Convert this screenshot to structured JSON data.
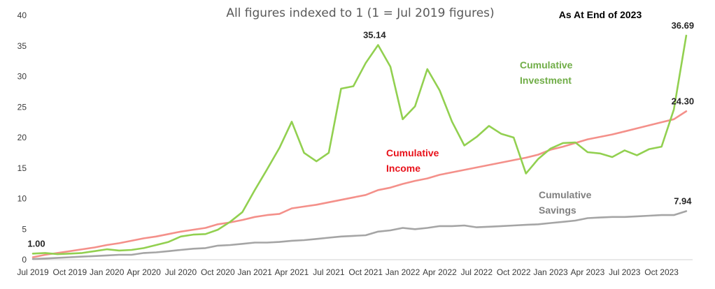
{
  "chart_data": {
    "type": "line",
    "title": "All figures indexed to 1 (1 = Jul 2019 figures)",
    "note": "As At End of 2023",
    "ylim": [
      0,
      40
    ],
    "yticks": [
      "0",
      "5",
      "10",
      "15",
      "20",
      "25",
      "30",
      "35",
      "40"
    ],
    "xticks": [
      "Jul 2019",
      "Oct 2019",
      "Jan 2020",
      "Apr 2020",
      "Jul 2020",
      "Oct 2020",
      "Jan 2021",
      "Apr 2021",
      "Jul 2021",
      "Oct 2021",
      "Jan 2022",
      "Apr 2022",
      "Jul 2022",
      "Oct 2022",
      "Jan 2023",
      "Apr 2023",
      "Jul 2023",
      "Oct 2023"
    ],
    "x": [
      "Jul 2019",
      "Aug 2019",
      "Sep 2019",
      "Oct 2019",
      "Nov 2019",
      "Dec 2019",
      "Jan 2020",
      "Feb 2020",
      "Mar 2020",
      "Apr 2020",
      "May 2020",
      "Jun 2020",
      "Jul 2020",
      "Aug 2020",
      "Sep 2020",
      "Oct 2020",
      "Nov 2020",
      "Dec 2020",
      "Jan 2021",
      "Feb 2021",
      "Mar 2021",
      "Apr 2021",
      "May 2021",
      "Jun 2021",
      "Jul 2021",
      "Aug 2021",
      "Sep 2021",
      "Oct 2021",
      "Nov 2021",
      "Dec 2021",
      "Jan 2022",
      "Feb 2022",
      "Mar 2022",
      "Apr 2022",
      "May 2022",
      "Jun 2022",
      "Jul 2022",
      "Aug 2022",
      "Sep 2022",
      "Oct 2022",
      "Nov 2022",
      "Dec 2022",
      "Jan 2023",
      "Feb 2023",
      "Mar 2023",
      "Apr 2023",
      "May 2023",
      "Jun 2023",
      "Jul 2023",
      "Aug 2023",
      "Sep 2023",
      "Oct 2023",
      "Nov 2023",
      "Dec 2023"
    ],
    "series": [
      {
        "name": "Cumulative Investment",
        "label_lines": [
          "Cumulative",
          "Investment"
        ],
        "color": "#92d050",
        "values": [
          1.0,
          1.1,
          0.9,
          1.0,
          1.1,
          1.4,
          1.7,
          1.5,
          1.6,
          1.9,
          2.4,
          2.9,
          3.8,
          4.1,
          4.2,
          4.9,
          6.2,
          7.8,
          11.4,
          14.8,
          18.3,
          22.6,
          17.5,
          16.1,
          17.5,
          28.0,
          28.4,
          32.2,
          35.14,
          31.6,
          23.0,
          25.1,
          31.2,
          27.7,
          22.6,
          18.7,
          20.1,
          21.9,
          20.6,
          20.0,
          14.1,
          16.5,
          18.2,
          19.1,
          19.2,
          17.6,
          17.4,
          16.8,
          17.9,
          17.1,
          18.1,
          18.5,
          24.6,
          36.69
        ]
      },
      {
        "name": "Cumulative Income",
        "label_lines": [
          "Cumulative",
          "Income"
        ],
        "color": "#f4908a",
        "values": [
          0.4,
          0.8,
          1.1,
          1.4,
          1.7,
          2.0,
          2.4,
          2.7,
          3.1,
          3.5,
          3.8,
          4.2,
          4.6,
          4.9,
          5.2,
          5.8,
          6.1,
          6.5,
          7.0,
          7.3,
          7.5,
          8.4,
          8.7,
          9.0,
          9.4,
          9.8,
          10.2,
          10.6,
          11.4,
          11.8,
          12.4,
          12.9,
          13.3,
          13.9,
          14.3,
          14.7,
          15.1,
          15.5,
          15.9,
          16.3,
          16.7,
          17.2,
          18.0,
          18.5,
          19.1,
          19.7,
          20.1,
          20.5,
          21.0,
          21.5,
          22.0,
          22.5,
          23.0,
          24.3
        ]
      },
      {
        "name": "Cumulative Savings",
        "label_lines": [
          "Cumulative",
          "Savings"
        ],
        "color": "#a5a5a5",
        "values": [
          0.1,
          0.2,
          0.3,
          0.4,
          0.5,
          0.6,
          0.7,
          0.8,
          0.8,
          1.1,
          1.2,
          1.4,
          1.6,
          1.8,
          1.9,
          2.3,
          2.4,
          2.6,
          2.8,
          2.8,
          2.9,
          3.1,
          3.2,
          3.4,
          3.6,
          3.8,
          3.9,
          4.0,
          4.6,
          4.8,
          5.2,
          5.0,
          5.2,
          5.5,
          5.5,
          5.6,
          5.3,
          5.4,
          5.5,
          5.6,
          5.7,
          5.8,
          6.0,
          6.2,
          6.4,
          6.8,
          6.9,
          7.0,
          7.0,
          7.1,
          7.2,
          7.3,
          7.3,
          7.94
        ]
      }
    ],
    "data_labels": [
      {
        "series": "Cumulative Investment",
        "index": 0,
        "text": "1.00"
      },
      {
        "series": "Cumulative Investment",
        "index": 28,
        "text": "35.14"
      },
      {
        "series": "Cumulative Investment",
        "index": 53,
        "text": "36.69"
      },
      {
        "series": "Cumulative Income",
        "index": 53,
        "text": "24.30"
      },
      {
        "series": "Cumulative Savings",
        "index": 53,
        "text": "7.94"
      }
    ],
    "legend": "none",
    "grid": false
  }
}
